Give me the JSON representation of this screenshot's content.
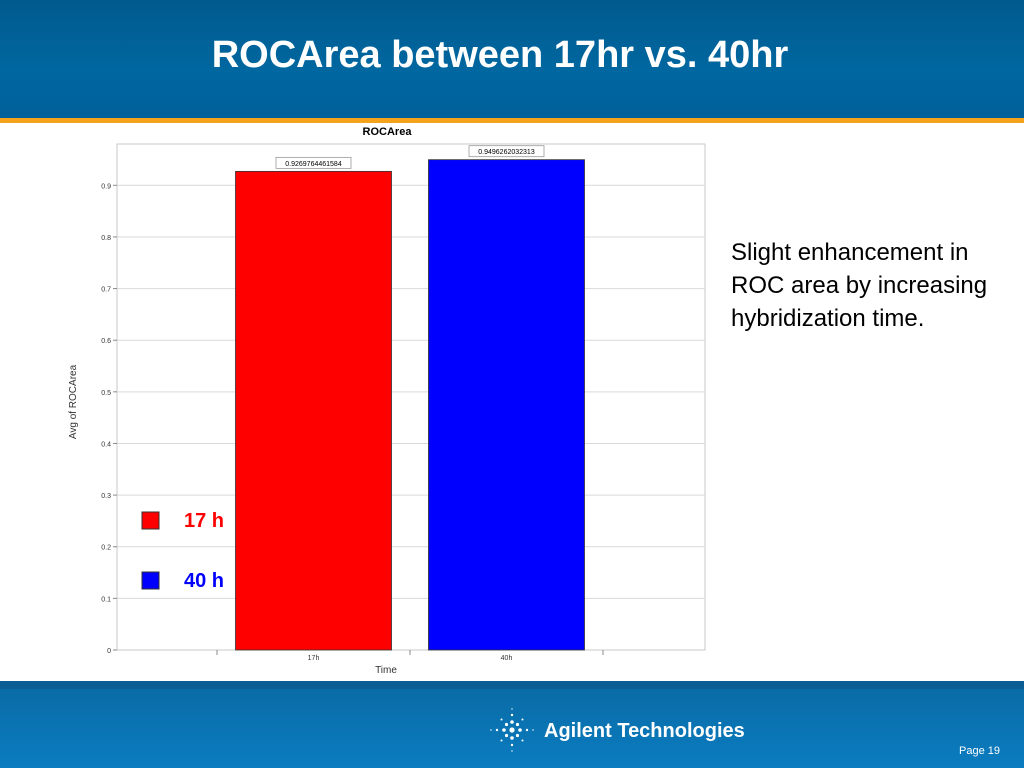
{
  "slide": {
    "title": "ROCArea between 17hr vs. 40hr",
    "note": "Slight enhancement in ROC area by increasing hybridization time.",
    "brand": "Agilent Technologies",
    "page": "Page 19"
  },
  "colors": {
    "header": "#0067a0",
    "accent": "#f5a21c",
    "bar_17h": "#ff0000",
    "bar_40h": "#0000ff"
  },
  "chart_data": {
    "type": "bar",
    "title": "ROCArea",
    "xlabel": "Time",
    "ylabel": "Avg of ROCArea",
    "categories": [
      "17h",
      "40h"
    ],
    "values": [
      0.9269764461584,
      0.9496262032313
    ],
    "value_labels": [
      "0.9269764461584",
      "0.9496262032313"
    ],
    "ylim": [
      0,
      0.98
    ],
    "yticks": [
      "0",
      "0.1",
      "0.2",
      "0.3",
      "0.4",
      "0.5",
      "0.6",
      "0.7",
      "0.8",
      "0.9"
    ],
    "grid": true,
    "legend": {
      "placement": "left-bottom",
      "items": [
        {
          "label": "17 h",
          "color": "#ff0000"
        },
        {
          "label": "40 h",
          "color": "#0000ff"
        }
      ]
    }
  }
}
